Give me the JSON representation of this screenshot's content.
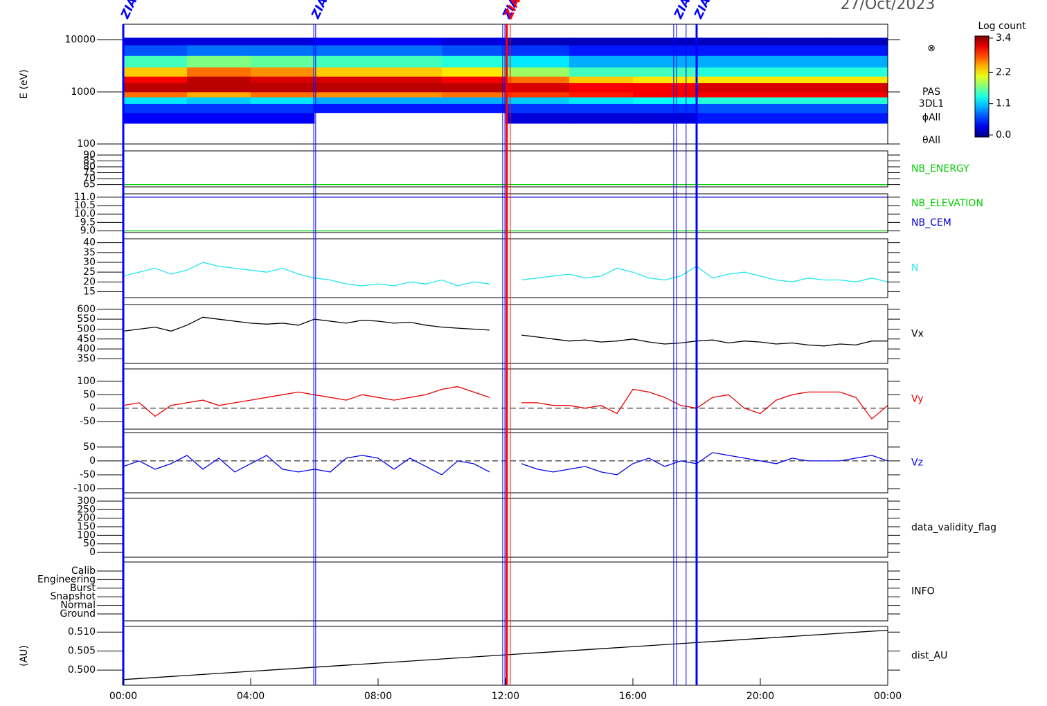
{
  "date": "27/Oct/2023",
  "time_axis": {
    "xlim": [
      0,
      24
    ],
    "xticks": [
      {
        "value": 0,
        "label": "00:00"
      },
      {
        "value": 4,
        "label": "04:00"
      },
      {
        "value": 8,
        "label": "08:00"
      },
      {
        "value": 12,
        "label": "12:00"
      },
      {
        "value": 16,
        "label": "16:00"
      },
      {
        "value": 20,
        "label": "20:00"
      },
      {
        "value": 24,
        "label": "00:00"
      }
    ]
  },
  "markers": [
    {
      "x": 0,
      "color": "#0000ff",
      "thick": true,
      "label": "ZIAS"
    },
    {
      "x": 5.98,
      "color": "#0000ff",
      "thick": false,
      "label": "ZIAS"
    },
    {
      "x": 6.04,
      "color": "#0000ff",
      "thick": false
    },
    {
      "x": 11.91,
      "color": "#0000ff",
      "thick": false
    },
    {
      "x": 11.98,
      "color": "#0000ff",
      "thick": false,
      "label": "ZIAS"
    },
    {
      "x": 12.04,
      "color": "#ff0000",
      "thick": true,
      "label": "ZIAS"
    },
    {
      "x": 12.15,
      "color": "#ff0000",
      "thick": false
    },
    {
      "x": 17.28,
      "color": "#0000ff",
      "thick": false
    },
    {
      "x": 17.37,
      "color": "#0000ff",
      "thick": false,
      "label": "ZIAS"
    },
    {
      "x": 17.67,
      "color": "#0000ff",
      "thick": false
    },
    {
      "x": 18.0,
      "color": "#0000ff",
      "thick": true,
      "label": "ZIAS"
    }
  ],
  "chart_data": [
    {
      "type": "heatmap",
      "ylabel": "E (eV)",
      "log_y": true,
      "ylim": [
        100,
        20000
      ],
      "yticks": [
        100,
        1000,
        10000
      ],
      "x_bins": [
        0,
        2,
        4,
        6,
        8,
        10,
        12,
        14,
        16,
        18,
        20,
        22,
        24
      ],
      "y_bins": [
        250,
        400,
        600,
        800,
        1000,
        1500,
        2000,
        3000,
        5000,
        8000,
        11000
      ],
      "values": [
        [
          0.4,
          0.4,
          0.4,
          null,
          null,
          null,
          0.3,
          0.3,
          0.3,
          0.5,
          0.5,
          0.5
        ],
        [
          0.6,
          0.6,
          0.6,
          0.5,
          0.5,
          0.5,
          0.6,
          0.6,
          0.6,
          0.7,
          0.7,
          0.7
        ],
        [
          1.2,
          1.1,
          1.2,
          1.0,
          1.0,
          1.0,
          1.1,
          1.2,
          1.3,
          1.4,
          1.4,
          1.4
        ],
        [
          2.6,
          2.4,
          2.6,
          2.5,
          2.5,
          2.6,
          2.8,
          2.9,
          3.0,
          3.0,
          3.0,
          3.0
        ],
        [
          3.2,
          3.2,
          3.2,
          3.2,
          3.2,
          3.2,
          3.1,
          3.0,
          3.0,
          3.1,
          3.1,
          3.1
        ],
        [
          3.0,
          3.2,
          3.1,
          3.1,
          3.1,
          3.0,
          2.6,
          2.3,
          2.2,
          2.2,
          2.2,
          2.2
        ],
        [
          2.3,
          2.6,
          2.5,
          2.3,
          2.3,
          2.2,
          1.8,
          1.5,
          1.5,
          1.4,
          1.4,
          1.4
        ],
        [
          1.5,
          1.7,
          1.6,
          1.5,
          1.5,
          1.4,
          1.2,
          1.0,
          1.0,
          1.0,
          1.0,
          1.0
        ],
        [
          0.7,
          0.8,
          0.8,
          0.8,
          0.8,
          0.7,
          0.6,
          0.5,
          0.5,
          0.5,
          0.5,
          0.5
        ],
        [
          0.3,
          0.3,
          0.3,
          0.4,
          0.4,
          0.3,
          0.2,
          0.2,
          0.2,
          0.2,
          0.2,
          0.2
        ]
      ],
      "colorbar": {
        "title": "Log count",
        "lim": [
          0,
          3.4
        ],
        "ticks": [
          {
            "value": 0,
            "label": "0.0"
          },
          {
            "value": 1.1,
            "label": "1.1"
          },
          {
            "value": 2.2,
            "label": "2.2"
          },
          {
            "value": 3.4,
            "label": "3.4"
          }
        ]
      },
      "labels": [
        "⊗",
        "PAS",
        "3DL1",
        "ϕAll",
        "θAll"
      ]
    },
    {
      "type": "line",
      "ylim": [
        63,
        93.5
      ],
      "yticks": [
        65,
        70,
        75,
        80,
        85,
        90
      ],
      "series": [
        {
          "name": "NB_ENERGY",
          "color": "#00cc00",
          "x": [
            0,
            24
          ],
          "values": [
            65,
            65
          ]
        }
      ]
    },
    {
      "type": "line",
      "ylim": [
        8.9,
        11.2
      ],
      "yticks": [
        {
          "value": 9,
          "label": "9.0"
        },
        9.5,
        {
          "value": 10,
          "label": "10.0"
        },
        10.5,
        {
          "value": 11,
          "label": "11.0"
        }
      ],
      "series": [
        {
          "name": "NB_ELEVATION",
          "color": "#00cc00",
          "x": [
            0,
            24
          ],
          "values": [
            9,
            9
          ]
        },
        {
          "name": "NB_CEM",
          "color": "#0000cc",
          "x": [
            0,
            24
          ],
          "values": [
            11,
            11
          ]
        }
      ]
    },
    {
      "type": "line",
      "ylim": [
        12,
        42
      ],
      "yticks": [
        15,
        20,
        25,
        30,
        35,
        40
      ],
      "series": [
        {
          "name": "N",
          "color": "#22e6f0",
          "x": [
            0,
            0.5,
            1,
            1.5,
            2,
            2.5,
            3,
            3.5,
            4,
            4.5,
            5,
            5.5,
            6,
            6.5,
            7,
            7.5,
            8,
            8.5,
            9,
            9.5,
            10,
            10.5,
            11,
            11.5,
            12,
            12.5,
            13,
            13.5,
            14,
            14.5,
            15,
            15.5,
            16,
            16.5,
            17,
            17.5,
            18,
            18.5,
            19,
            19.5,
            20,
            20.5,
            21,
            21.5,
            22,
            22.5,
            23,
            23.5,
            24
          ],
          "values": [
            23,
            25,
            27,
            24,
            26,
            30,
            28,
            27,
            26,
            25,
            27,
            24,
            22,
            21,
            19,
            18,
            19,
            18,
            20,
            19,
            21,
            18,
            20,
            19,
            null,
            21,
            22,
            23,
            24,
            22,
            23,
            27,
            25,
            22,
            21,
            23,
            28,
            22,
            24,
            25,
            23,
            21,
            20,
            22,
            21,
            21,
            20,
            22,
            20
          ]
        }
      ]
    },
    {
      "type": "line",
      "ylim": [
        327,
        624
      ],
      "yticks": [
        350,
        400,
        450,
        500,
        550,
        600
      ],
      "series": [
        {
          "name": "Vx",
          "color": "#000000",
          "x": [
            0,
            0.5,
            1,
            1.5,
            2,
            2.5,
            3,
            3.5,
            4,
            4.5,
            5,
            5.5,
            6,
            6.5,
            7,
            7.5,
            8,
            8.5,
            9,
            9.5,
            10,
            10.5,
            11,
            11.5,
            12,
            12.5,
            13,
            13.5,
            14,
            14.5,
            15,
            15.5,
            16,
            16.5,
            17,
            17.5,
            18,
            18.5,
            19,
            19.5,
            20,
            20.5,
            21,
            21.5,
            22,
            22.5,
            23,
            23.5,
            24
          ],
          "values": [
            490,
            500,
            510,
            490,
            520,
            560,
            550,
            540,
            530,
            525,
            530,
            520,
            550,
            540,
            530,
            545,
            540,
            530,
            535,
            520,
            510,
            505,
            500,
            495,
            null,
            470,
            460,
            450,
            440,
            445,
            435,
            440,
            450,
            435,
            425,
            430,
            440,
            445,
            430,
            440,
            435,
            425,
            430,
            420,
            415,
            425,
            420,
            440,
            440
          ]
        }
      ]
    },
    {
      "type": "line",
      "ylim": [
        -78,
        146
      ],
      "yticks": [
        -50,
        0,
        50,
        100
      ],
      "hline": 0,
      "series": [
        {
          "name": "Vy",
          "color": "#ee0000",
          "x": [
            0,
            0.5,
            1,
            1.5,
            2,
            2.5,
            3,
            3.5,
            4,
            4.5,
            5,
            5.5,
            6,
            6.5,
            7,
            7.5,
            8,
            8.5,
            9,
            9.5,
            10,
            10.5,
            11,
            11.5,
            12,
            12.5,
            13,
            13.5,
            14,
            14.5,
            15,
            15.5,
            16,
            16.5,
            17,
            17.5,
            18,
            18.5,
            19,
            19.5,
            20,
            20.5,
            21,
            21.5,
            22,
            22.5,
            23,
            23.5,
            24
          ],
          "values": [
            10,
            20,
            -30,
            10,
            20,
            30,
            10,
            20,
            30,
            40,
            50,
            60,
            50,
            40,
            30,
            50,
            40,
            30,
            40,
            50,
            70,
            80,
            60,
            40,
            null,
            20,
            20,
            10,
            10,
            0,
            10,
            -20,
            70,
            60,
            40,
            10,
            0,
            40,
            50,
            0,
            -20,
            30,
            50,
            60,
            60,
            60,
            40,
            -40,
            10
          ]
        }
      ]
    },
    {
      "type": "line",
      "ylim": [
        -115,
        102
      ],
      "yticks": [
        -100,
        -50,
        0,
        50
      ],
      "hline": 0,
      "series": [
        {
          "name": "Vz",
          "color": "#0000ee",
          "x": [
            0,
            0.5,
            1,
            1.5,
            2,
            2.5,
            3,
            3.5,
            4,
            4.5,
            5,
            5.5,
            6,
            6.5,
            7,
            7.5,
            8,
            8.5,
            9,
            9.5,
            10,
            10.5,
            11,
            11.5,
            12,
            12.5,
            13,
            13.5,
            14,
            14.5,
            15,
            15.5,
            16,
            16.5,
            17,
            17.5,
            18,
            18.5,
            19,
            19.5,
            20,
            20.5,
            21,
            21.5,
            22,
            22.5,
            23,
            23.5,
            24
          ],
          "values": [
            -20,
            0,
            -30,
            -10,
            20,
            -30,
            10,
            -40,
            -10,
            20,
            -30,
            -40,
            -30,
            -40,
            10,
            20,
            10,
            -30,
            10,
            -20,
            -50,
            0,
            -10,
            -40,
            null,
            -10,
            -30,
            -40,
            -30,
            -20,
            -40,
            -50,
            -10,
            10,
            -20,
            0,
            -10,
            30,
            20,
            10,
            0,
            -10,
            10,
            0,
            0,
            0,
            10,
            20,
            0
          ]
        }
      ]
    },
    {
      "type": "line",
      "ylim": [
        -28,
        316
      ],
      "yticks": [
        0,
        50,
        100,
        150,
        200,
        250,
        300
      ],
      "label": "data_validity_flag"
    },
    {
      "type": "category",
      "categories": [
        "Calib",
        "Engineering",
        "Burst",
        "Snapshot",
        "Normal",
        "Ground"
      ],
      "label": "INFO"
    },
    {
      "type": "line",
      "ylabel": "(AU)",
      "ylim": [
        0.496,
        0.5115
      ],
      "yticks": [
        {
          "value": 0.5,
          "label": "0.500"
        },
        {
          "value": 0.505,
          "label": "0.505"
        },
        {
          "value": 0.51,
          "label": "0.510"
        }
      ],
      "series": [
        {
          "name": "dist_AU",
          "color": "#000000",
          "x": [
            0,
            24
          ],
          "values": [
            0.4975,
            0.5105
          ]
        }
      ]
    }
  ]
}
